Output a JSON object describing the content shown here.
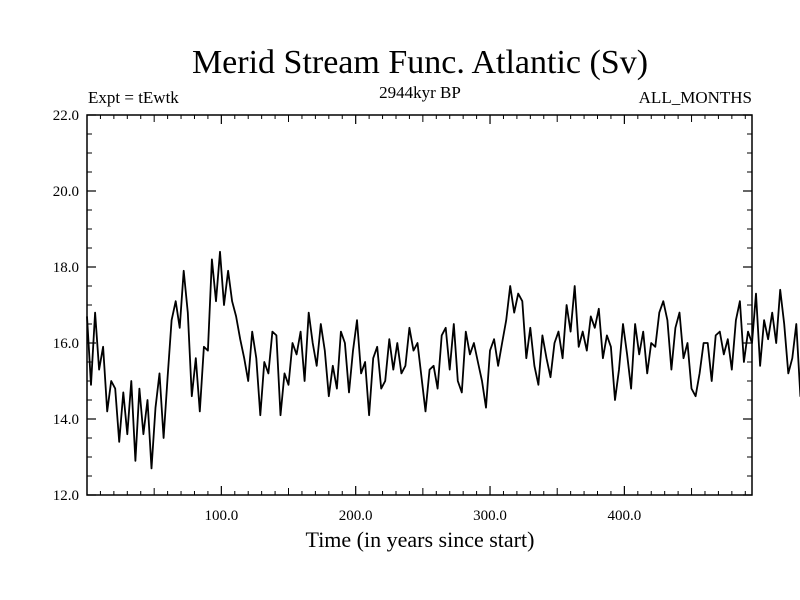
{
  "chart_data": {
    "type": "line",
    "title": "Merid Stream Func. Atlantic (Sv)",
    "subtitle_left": "Expt = tEwtk",
    "subtitle_center": "2944kyr BP",
    "subtitle_right": "ALL_MONTHS",
    "xlabel": "Time (in years since start)",
    "ylabel": "",
    "xlim": [
      0,
      495
    ],
    "ylim": [
      12.0,
      22.0
    ],
    "x_ticks": [
      100,
      200,
      300,
      400
    ],
    "x_tick_labels": [
      "100.0",
      "200.0",
      "300.0",
      "400.0"
    ],
    "y_ticks": [
      12,
      14,
      16,
      18,
      20,
      22
    ],
    "y_tick_labels": [
      "12.0",
      "14.0",
      "16.0",
      "18.0",
      "20.0",
      "22.0"
    ],
    "line_color": "#000000",
    "series": [
      {
        "name": "Merid Stream Func. Atlantic",
        "x_start": 0,
        "x_step": 3,
        "values": [
          16.7,
          14.9,
          16.8,
          15.3,
          15.9,
          14.2,
          15.0,
          14.8,
          13.4,
          14.7,
          13.6,
          15.0,
          12.9,
          14.8,
          13.6,
          14.5,
          12.7,
          14.3,
          15.2,
          13.5,
          15.1,
          16.6,
          17.1,
          16.4,
          17.9,
          16.8,
          14.6,
          15.6,
          14.2,
          15.9,
          15.8,
          18.2,
          17.1,
          18.4,
          17.0,
          17.9,
          17.1,
          16.7,
          16.1,
          15.6,
          15.0,
          16.3,
          15.6,
          14.1,
          15.5,
          15.2,
          16.3,
          16.2,
          14.1,
          15.2,
          14.9,
          16.0,
          15.7,
          16.3,
          15.0,
          16.8,
          16.0,
          15.4,
          16.5,
          15.8,
          14.6,
          15.4,
          14.8,
          16.3,
          16.0,
          14.7,
          15.8,
          16.6,
          15.2,
          15.5,
          14.1,
          15.6,
          15.9,
          14.8,
          15.0,
          16.1,
          15.3,
          16.0,
          15.2,
          15.4,
          16.4,
          15.8,
          16.0,
          15.1,
          14.2,
          15.3,
          15.4,
          14.8,
          16.2,
          16.4,
          15.3,
          16.5,
          15.0,
          14.7,
          16.3,
          15.7,
          16.0,
          15.5,
          15.0,
          14.3,
          15.8,
          16.1,
          15.4,
          16.0,
          16.6,
          17.5,
          16.8,
          17.3,
          17.1,
          15.6,
          16.4,
          15.4,
          14.9,
          16.2,
          15.6,
          15.1,
          16.0,
          16.3,
          15.6,
          17.0,
          16.3,
          17.5,
          15.9,
          16.3,
          15.8,
          16.7,
          16.4,
          16.9,
          15.6,
          16.2,
          15.9,
          14.5,
          15.3,
          16.5,
          15.7,
          14.8,
          16.5,
          15.7,
          16.3,
          15.2,
          16.0,
          15.9,
          16.8,
          17.1,
          16.6,
          15.3,
          16.4,
          16.8,
          15.6,
          16.0,
          14.8,
          14.6,
          15.2,
          16.0,
          16.0,
          15.0,
          16.2,
          16.3,
          15.7,
          16.1,
          15.3,
          16.6,
          17.1,
          15.5,
          16.3,
          16.0,
          17.3,
          15.4,
          16.6,
          16.1,
          16.8,
          16.0,
          17.4,
          16.5,
          15.2,
          15.6,
          16.5,
          14.6,
          15.5,
          16.6,
          16.2,
          15.9,
          16.4,
          15.1,
          15.6,
          16.5,
          16.8,
          15.9,
          16.2,
          17.3,
          16.7,
          15.7,
          16.1,
          16.5,
          17.1,
          17.5,
          15.5,
          16.5,
          15.2,
          16.3,
          17.3,
          16.9,
          15.4,
          16.0,
          17.6,
          16.8,
          15.7,
          15.8,
          16.1,
          15.9,
          15.2,
          14.6,
          15.3,
          15.8,
          14.9,
          15.3,
          16.1,
          15.9,
          16.4,
          16.5,
          16.0,
          15.4,
          14.0,
          16.4,
          15.9,
          15.4,
          14.8,
          16.5,
          16.1,
          16.2,
          15.7,
          16.8,
          16.4,
          17.3,
          17.5,
          16.0,
          17.4,
          17.0,
          16.5,
          15.8,
          16.6,
          16.3,
          17.9,
          17.5,
          18.1,
          16.8,
          17.6,
          17.0,
          15.8,
          16.3,
          15.8,
          16.9,
          16.3,
          17.4,
          16.6,
          16.8,
          17.7,
          16.1,
          17.6,
          16.4,
          16.0,
          16.4,
          16.8,
          17.3,
          16.5,
          17.1,
          15.8,
          17.1,
          15.6,
          16.6,
          17.4,
          16.3,
          16.0,
          16.9,
          17.2,
          15.8,
          16.2,
          16.5,
          18.3,
          16.8,
          17.3,
          17.6,
          16.5,
          17.3,
          18.1,
          15.9,
          16.6,
          15.7,
          16.8,
          17.3,
          18.1,
          21.2,
          14.8,
          18.0,
          16.5,
          17.3,
          17.7,
          16.9,
          18.0,
          17.3,
          18.6,
          16.4,
          17.1,
          16.7,
          15.2,
          17.1,
          16.4,
          17.0,
          15.6,
          17.0,
          16.1,
          15.3,
          16.8,
          15.1,
          17.0,
          16.6,
          16.1,
          15.4,
          18.4,
          15.9,
          17.2,
          16.5,
          17.4,
          15.9
        ]
      }
    ]
  }
}
